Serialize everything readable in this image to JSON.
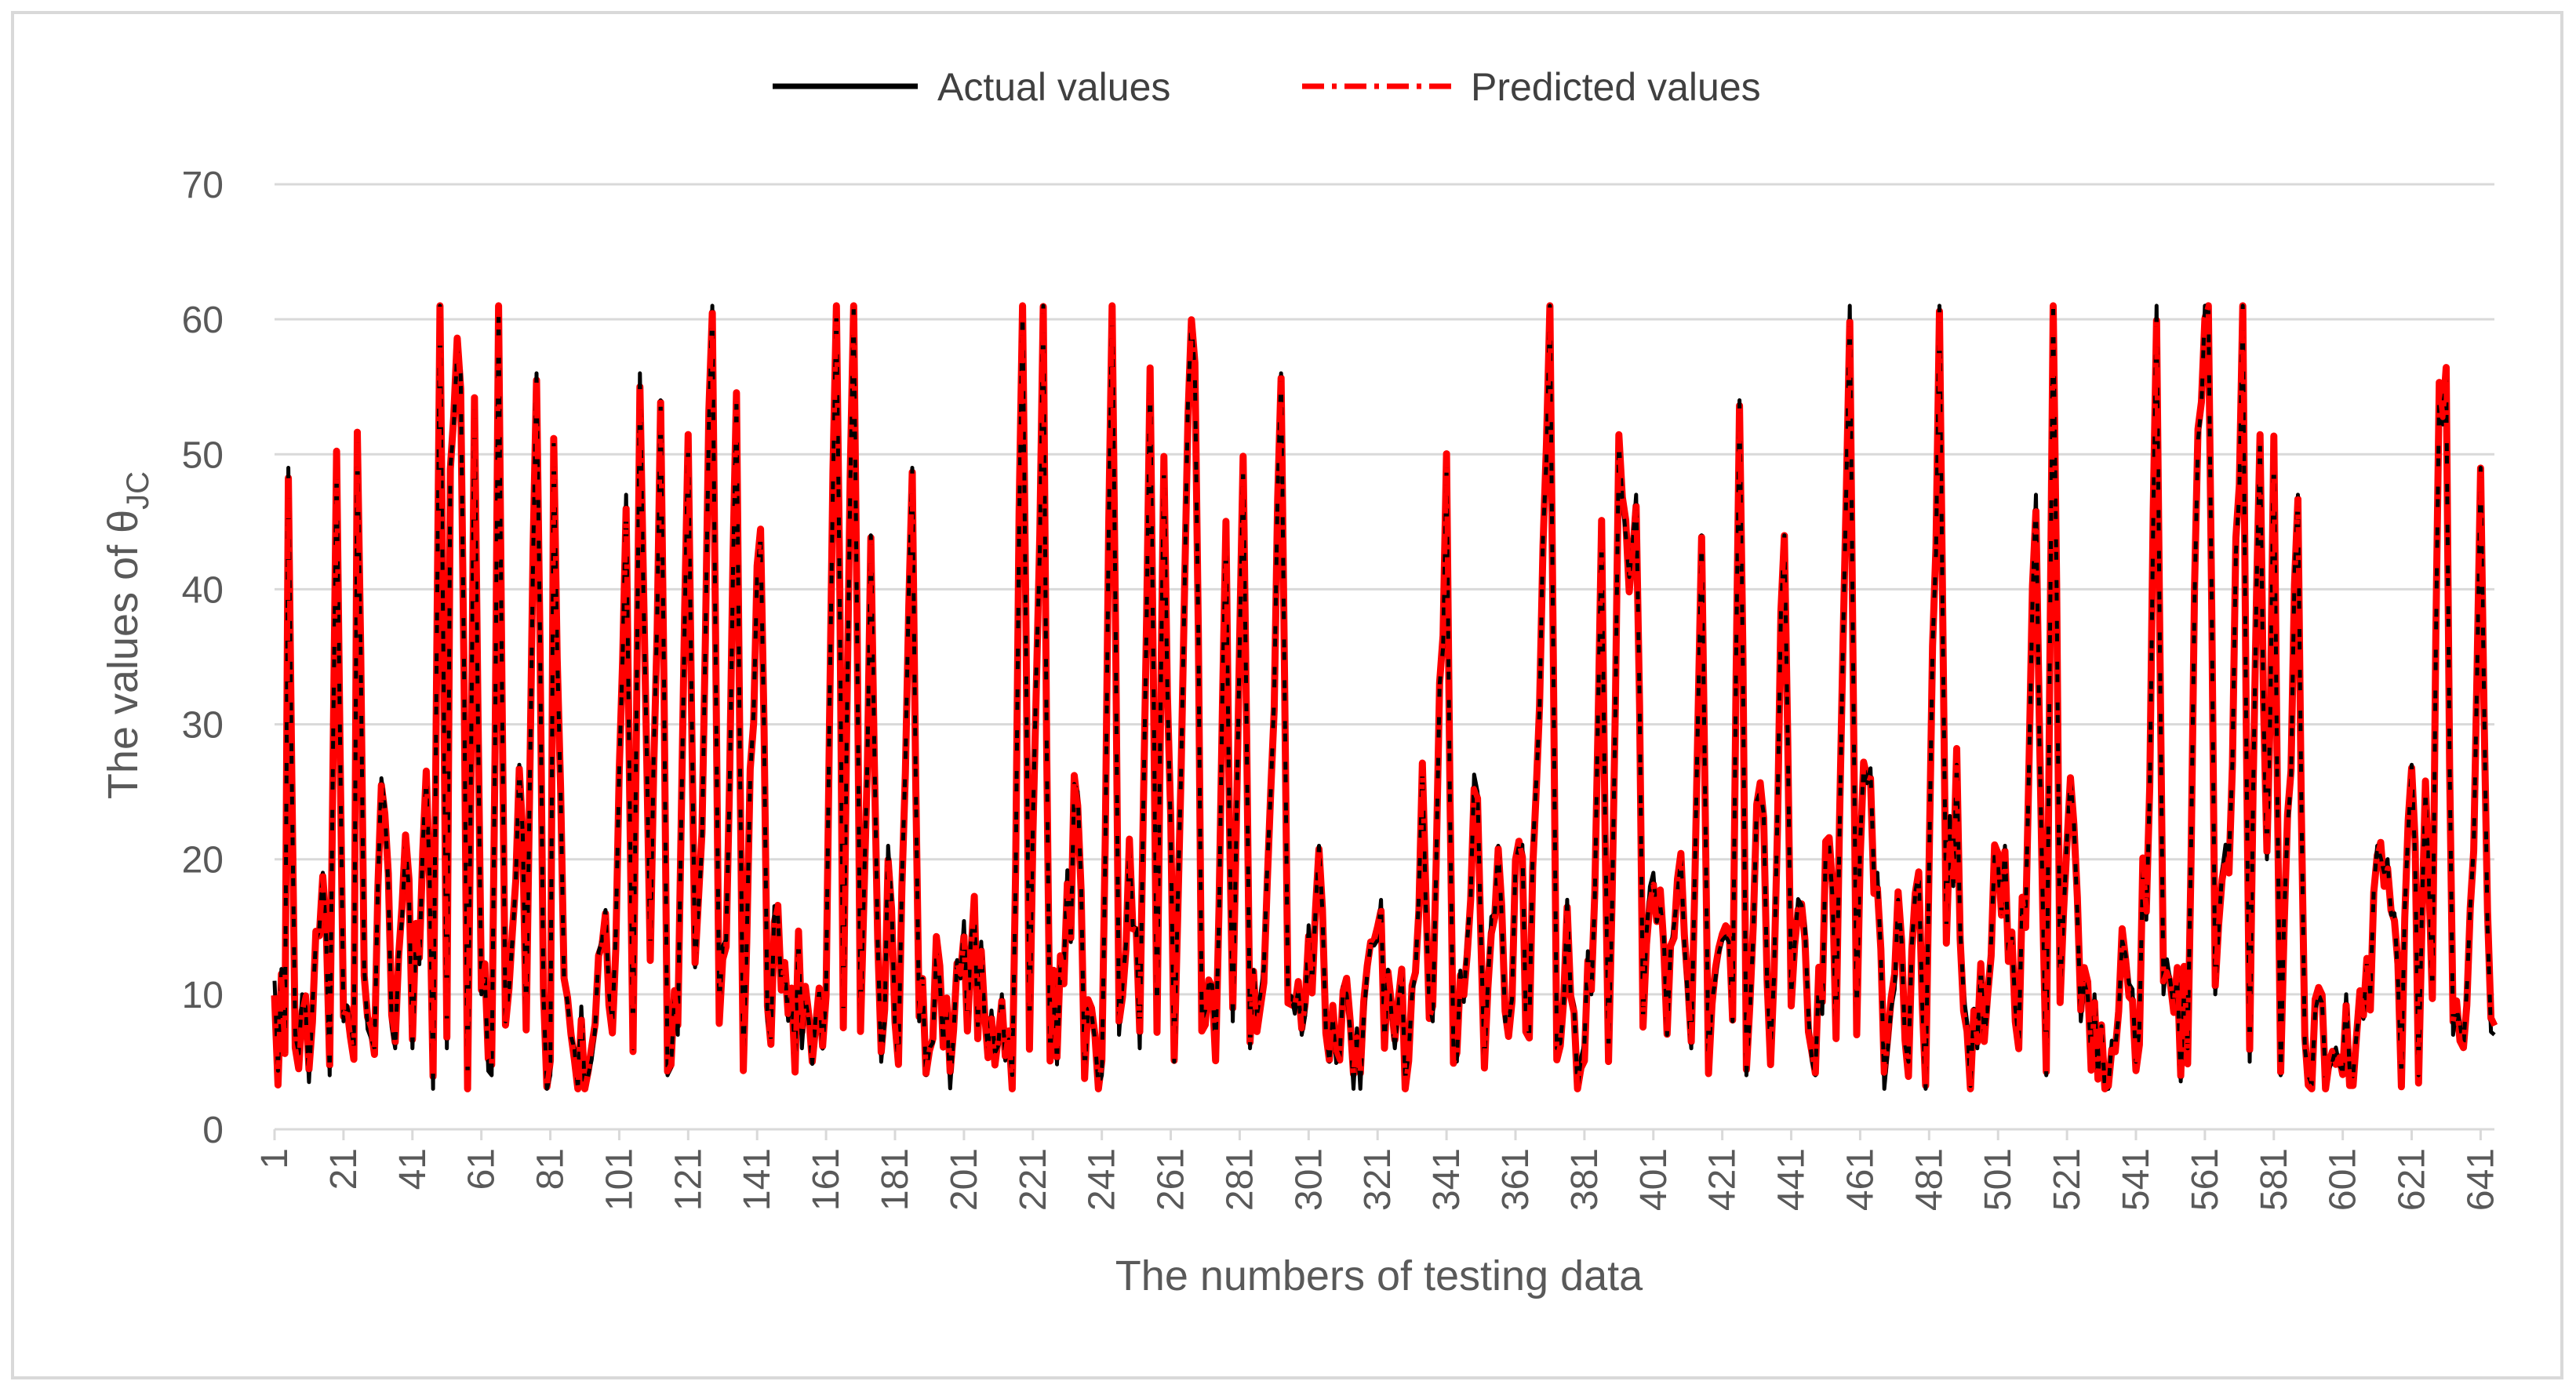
{
  "chart_data": {
    "type": "line",
    "title": "",
    "xlabel": "The numbers of testing data",
    "ylabel_main": "The values of θ",
    "ylabel_sub": "JC",
    "ylim": [
      0,
      70
    ],
    "yticks": [
      0,
      10,
      20,
      30,
      40,
      50,
      60,
      70
    ],
    "xlim": [
      1,
      645
    ],
    "xticks": [
      1,
      21,
      41,
      61,
      81,
      101,
      121,
      141,
      161,
      181,
      201,
      221,
      241,
      261,
      281,
      301,
      321,
      341,
      361,
      381,
      401,
      421,
      441,
      461,
      481,
      501,
      521,
      541,
      561,
      581,
      601,
      621,
      641
    ],
    "grid": true,
    "legend_position": "top-center",
    "series": [
      {
        "name": "Actual values",
        "color": "#000000",
        "style": "solid"
      },
      {
        "name": "Predicted values",
        "color": "#ff0000",
        "style": "dash-dot"
      }
    ],
    "n_points": 645,
    "anchors": [
      [
        1,
        11
      ],
      [
        4,
        6
      ],
      [
        5,
        49
      ],
      [
        7,
        7
      ],
      [
        9,
        10
      ],
      [
        11,
        3.5
      ],
      [
        13,
        14
      ],
      [
        15,
        19
      ],
      [
        17,
        4
      ],
      [
        19,
        49
      ],
      [
        21,
        8
      ],
      [
        24,
        6
      ],
      [
        25,
        51
      ],
      [
        27,
        12
      ],
      [
        30,
        6
      ],
      [
        32,
        26
      ],
      [
        34,
        18
      ],
      [
        36,
        6
      ],
      [
        39,
        21
      ],
      [
        41,
        6
      ],
      [
        45,
        26
      ],
      [
        47,
        3
      ],
      [
        49,
        61
      ],
      [
        51,
        6
      ],
      [
        52,
        49
      ],
      [
        55,
        56
      ],
      [
        57,
        3
      ],
      [
        59,
        54
      ],
      [
        61,
        10
      ],
      [
        64,
        4
      ],
      [
        66,
        61
      ],
      [
        68,
        8
      ],
      [
        70,
        14
      ],
      [
        72,
        27
      ],
      [
        74,
        8
      ],
      [
        77,
        56
      ],
      [
        79,
        10
      ],
      [
        81,
        4
      ],
      [
        82,
        51
      ],
      [
        85,
        11
      ],
      [
        88,
        6
      ],
      [
        92,
        4
      ],
      [
        96,
        14
      ],
      [
        99,
        8
      ],
      [
        103,
        47
      ],
      [
        105,
        6
      ],
      [
        107,
        56
      ],
      [
        110,
        13
      ],
      [
        113,
        54
      ],
      [
        115,
        4
      ],
      [
        118,
        7
      ],
      [
        121,
        51
      ],
      [
        123,
        12
      ],
      [
        125,
        21
      ],
      [
        128,
        61
      ],
      [
        130,
        9
      ],
      [
        132,
        14
      ],
      [
        135,
        54
      ],
      [
        137,
        5
      ],
      [
        139,
        26
      ],
      [
        142,
        44
      ],
      [
        144,
        8
      ],
      [
        147,
        16
      ],
      [
        151,
        10
      ],
      [
        156,
        8
      ],
      [
        161,
        10
      ],
      [
        164,
        61
      ],
      [
        166,
        8
      ],
      [
        169,
        61
      ],
      [
        171,
        8
      ],
      [
        174,
        44
      ],
      [
        177,
        5
      ],
      [
        179,
        21
      ],
      [
        182,
        5
      ],
      [
        186,
        49
      ],
      [
        188,
        8
      ],
      [
        191,
        6
      ],
      [
        194,
        11
      ],
      [
        198,
        7
      ],
      [
        203,
        14
      ],
      [
        208,
        6
      ],
      [
        212,
        10
      ],
      [
        215,
        4
      ],
      [
        218,
        61
      ],
      [
        220,
        7
      ],
      [
        224,
        61
      ],
      [
        226,
        5
      ],
      [
        230,
        12
      ],
      [
        234,
        25
      ],
      [
        236,
        4
      ],
      [
        241,
        4
      ],
      [
        244,
        61
      ],
      [
        246,
        7
      ],
      [
        249,
        21
      ],
      [
        252,
        6
      ],
      [
        255,
        56
      ],
      [
        257,
        8
      ],
      [
        259,
        49
      ],
      [
        262,
        5
      ],
      [
        266,
        54
      ],
      [
        268,
        56
      ],
      [
        270,
        8
      ],
      [
        274,
        6
      ],
      [
        277,
        44
      ],
      [
        279,
        8
      ],
      [
        282,
        49
      ],
      [
        284,
        6
      ],
      [
        287,
        10
      ],
      [
        290,
        25
      ],
      [
        293,
        56
      ],
      [
        295,
        10
      ],
      [
        299,
        7
      ],
      [
        304,
        21
      ],
      [
        307,
        5
      ],
      [
        312,
        10
      ],
      [
        316,
        3
      ],
      [
        321,
        14
      ],
      [
        326,
        6
      ],
      [
        331,
        10
      ],
      [
        334,
        27
      ],
      [
        337,
        8
      ],
      [
        341,
        49
      ],
      [
        343,
        6
      ],
      [
        347,
        14
      ],
      [
        350,
        25
      ],
      [
        352,
        5
      ],
      [
        356,
        21
      ],
      [
        359,
        8
      ],
      [
        362,
        21
      ],
      [
        365,
        7
      ],
      [
        369,
        44
      ],
      [
        371,
        61
      ],
      [
        373,
        6
      ],
      [
        376,
        17
      ],
      [
        379,
        3
      ],
      [
        383,
        10
      ],
      [
        386,
        44
      ],
      [
        388,
        6
      ],
      [
        391,
        51
      ],
      [
        393,
        44
      ],
      [
        396,
        47
      ],
      [
        398,
        8
      ],
      [
        401,
        19
      ],
      [
        405,
        7
      ],
      [
        409,
        20
      ],
      [
        412,
        6
      ],
      [
        415,
        44
      ],
      [
        417,
        5
      ],
      [
        421,
        14
      ],
      [
        424,
        8
      ],
      [
        426,
        54
      ],
      [
        428,
        4
      ],
      [
        432,
        25
      ],
      [
        435,
        6
      ],
      [
        439,
        44
      ],
      [
        441,
        10
      ],
      [
        445,
        15
      ],
      [
        448,
        4
      ],
      [
        452,
        21
      ],
      [
        454,
        7
      ],
      [
        458,
        61
      ],
      [
        460,
        8
      ],
      [
        462,
        27
      ],
      [
        466,
        19
      ],
      [
        468,
        3
      ],
      [
        472,
        17
      ],
      [
        475,
        5
      ],
      [
        478,
        19
      ],
      [
        480,
        3
      ],
      [
        484,
        61
      ],
      [
        486,
        15
      ],
      [
        489,
        27
      ],
      [
        491,
        10
      ],
      [
        495,
        6
      ],
      [
        499,
        14
      ],
      [
        503,
        21
      ],
      [
        506,
        9
      ],
      [
        509,
        16
      ],
      [
        512,
        47
      ],
      [
        515,
        4
      ],
      [
        517,
        61
      ],
      [
        519,
        10
      ],
      [
        522,
        26
      ],
      [
        525,
        8
      ],
      [
        529,
        10
      ],
      [
        533,
        3
      ],
      [
        537,
        14
      ],
      [
        541,
        5
      ],
      [
        545,
        25
      ],
      [
        547,
        61
      ],
      [
        549,
        10
      ],
      [
        552,
        9
      ],
      [
        556,
        6
      ],
      [
        559,
        51
      ],
      [
        562,
        61
      ],
      [
        564,
        10
      ],
      [
        568,
        20
      ],
      [
        572,
        61
      ],
      [
        574,
        5
      ],
      [
        577,
        51
      ],
      [
        579,
        20
      ],
      [
        581,
        51
      ],
      [
        583,
        4
      ],
      [
        586,
        26
      ],
      [
        588,
        47
      ],
      [
        590,
        6
      ],
      [
        594,
        10
      ],
      [
        598,
        5
      ],
      [
        602,
        10
      ],
      [
        605,
        7
      ],
      [
        609,
        10
      ],
      [
        611,
        21
      ],
      [
        613,
        19
      ],
      [
        616,
        16
      ],
      [
        618,
        4
      ],
      [
        621,
        27
      ],
      [
        623,
        4
      ],
      [
        625,
        25
      ],
      [
        627,
        10
      ],
      [
        629,
        55
      ],
      [
        631,
        56
      ],
      [
        633,
        7
      ],
      [
        636,
        6
      ],
      [
        639,
        21
      ],
      [
        641,
        49
      ],
      [
        643,
        15
      ],
      [
        645,
        7
      ]
    ]
  },
  "legend": {
    "actual_label": "Actual values",
    "predicted_label": "Predicted values"
  }
}
